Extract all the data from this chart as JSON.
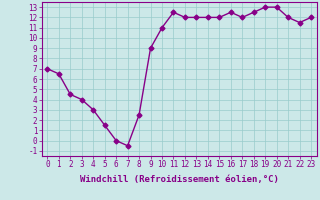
{
  "x": [
    0,
    1,
    2,
    3,
    4,
    5,
    6,
    7,
    8,
    9,
    10,
    11,
    12,
    13,
    14,
    15,
    16,
    17,
    18,
    19,
    20,
    21,
    22,
    23
  ],
  "y": [
    7.0,
    6.5,
    4.5,
    4.0,
    3.0,
    1.5,
    0.0,
    -0.5,
    2.5,
    9.0,
    11.0,
    12.5,
    12.0,
    12.0,
    12.0,
    12.0,
    12.5,
    12.0,
    12.5,
    13.0,
    13.0,
    12.0,
    11.5,
    12.0
  ],
  "line_color": "#880088",
  "marker": "D",
  "marker_size": 2.5,
  "bg_color": "#cce8e8",
  "grid_color": "#99cccc",
  "xlabel": "Windchill (Refroidissement éolien,°C)",
  "xlim": [
    -0.5,
    23.5
  ],
  "ylim": [
    -1.5,
    13.5
  ],
  "yticks": [
    -1,
    0,
    1,
    2,
    3,
    4,
    5,
    6,
    7,
    8,
    9,
    10,
    11,
    12,
    13
  ],
  "xticks": [
    0,
    1,
    2,
    3,
    4,
    5,
    6,
    7,
    8,
    9,
    10,
    11,
    12,
    13,
    14,
    15,
    16,
    17,
    18,
    19,
    20,
    21,
    22,
    23
  ],
  "tick_fontsize": 5.5,
  "xlabel_fontsize": 6.5,
  "line_width": 1.0
}
